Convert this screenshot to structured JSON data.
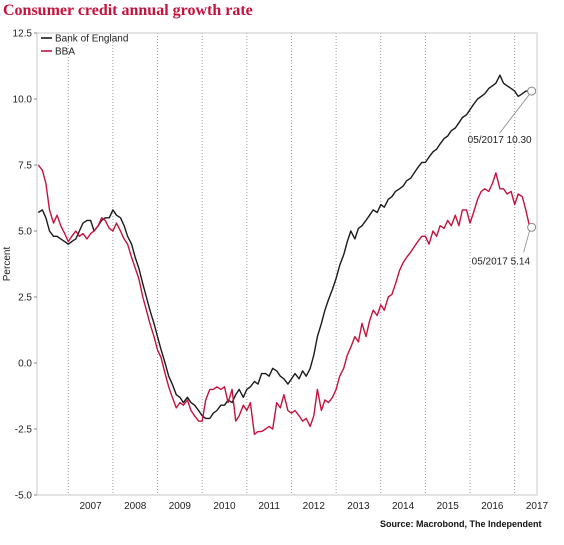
{
  "chart_data": {
    "type": "line",
    "title": "Consumer credit annual growth rate",
    "ylabel": "Percent",
    "xlabel": "",
    "ylim": [
      -5.0,
      12.5
    ],
    "yticks": [
      "12.5",
      "10.0",
      "7.5",
      "5.0",
      "2.5",
      "0.0",
      "-2.5",
      "-5.0"
    ],
    "xticks": [
      "2007",
      "2008",
      "2009",
      "2010",
      "2011",
      "2012",
      "2013",
      "2014",
      "2015",
      "2016",
      "2017"
    ],
    "xlim": [
      2006.3,
      2017.5
    ],
    "grid": "vertical-dotted",
    "legend": "top-left",
    "series": [
      {
        "name": "Bank of England",
        "color": "#1a1a1a",
        "points": [
          [
            2006.33,
            5.7
          ],
          [
            2006.42,
            5.8
          ],
          [
            2006.5,
            5.5
          ],
          [
            2006.58,
            5.0
          ],
          [
            2006.67,
            4.8
          ],
          [
            2006.75,
            4.8
          ],
          [
            2006.83,
            4.7
          ],
          [
            2006.92,
            4.6
          ],
          [
            2007.0,
            4.5
          ],
          [
            2007.08,
            4.6
          ],
          [
            2007.17,
            4.7
          ],
          [
            2007.25,
            5.0
          ],
          [
            2007.33,
            5.3
          ],
          [
            2007.42,
            5.4
          ],
          [
            2007.5,
            5.4
          ],
          [
            2007.58,
            5.0
          ],
          [
            2007.67,
            5.2
          ],
          [
            2007.75,
            5.4
          ],
          [
            2007.83,
            5.5
          ],
          [
            2007.92,
            5.5
          ],
          [
            2008.0,
            5.8
          ],
          [
            2008.08,
            5.6
          ],
          [
            2008.17,
            5.5
          ],
          [
            2008.25,
            5.2
          ],
          [
            2008.33,
            4.8
          ],
          [
            2008.42,
            4.5
          ],
          [
            2008.5,
            4.0
          ],
          [
            2008.58,
            3.6
          ],
          [
            2008.67,
            3.0
          ],
          [
            2008.75,
            2.5
          ],
          [
            2008.83,
            2.0
          ],
          [
            2008.92,
            1.5
          ],
          [
            2009.0,
            1.0
          ],
          [
            2009.08,
            0.5
          ],
          [
            2009.17,
            0.0
          ],
          [
            2009.25,
            -0.5
          ],
          [
            2009.33,
            -0.8
          ],
          [
            2009.42,
            -1.2
          ],
          [
            2009.5,
            -1.3
          ],
          [
            2009.58,
            -1.5
          ],
          [
            2009.67,
            -1.3
          ],
          [
            2009.75,
            -1.5
          ],
          [
            2009.83,
            -1.6
          ],
          [
            2009.92,
            -1.8
          ],
          [
            2010.0,
            -2.0
          ],
          [
            2010.08,
            -2.1
          ],
          [
            2010.17,
            -2.1
          ],
          [
            2010.25,
            -1.9
          ],
          [
            2010.33,
            -1.8
          ],
          [
            2010.42,
            -1.6
          ],
          [
            2010.5,
            -1.6
          ],
          [
            2010.58,
            -1.4
          ],
          [
            2010.67,
            -1.5
          ],
          [
            2010.75,
            -1.2
          ],
          [
            2010.83,
            -1.0
          ],
          [
            2010.92,
            -1.3
          ],
          [
            2011.0,
            -1.0
          ],
          [
            2011.08,
            -0.9
          ],
          [
            2011.17,
            -0.7
          ],
          [
            2011.25,
            -0.8
          ],
          [
            2011.33,
            -0.4
          ],
          [
            2011.42,
            -0.4
          ],
          [
            2011.5,
            -0.5
          ],
          [
            2011.58,
            -0.2
          ],
          [
            2011.67,
            -0.3
          ],
          [
            2011.75,
            -0.5
          ],
          [
            2011.83,
            -0.6
          ],
          [
            2011.92,
            -0.8
          ],
          [
            2012.0,
            -0.6
          ],
          [
            2012.08,
            -0.4
          ],
          [
            2012.17,
            -0.6
          ],
          [
            2012.25,
            -0.3
          ],
          [
            2012.33,
            -0.5
          ],
          [
            2012.42,
            -0.2
          ],
          [
            2012.5,
            0.3
          ],
          [
            2012.58,
            1.0
          ],
          [
            2012.67,
            1.5
          ],
          [
            2012.75,
            2.0
          ],
          [
            2012.83,
            2.4
          ],
          [
            2012.92,
            2.8
          ],
          [
            2013.0,
            3.2
          ],
          [
            2013.08,
            3.7
          ],
          [
            2013.17,
            4.1
          ],
          [
            2013.25,
            4.6
          ],
          [
            2013.33,
            5.0
          ],
          [
            2013.42,
            4.7
          ],
          [
            2013.5,
            5.1
          ],
          [
            2013.58,
            5.2
          ],
          [
            2013.67,
            5.4
          ],
          [
            2013.75,
            5.6
          ],
          [
            2013.83,
            5.8
          ],
          [
            2013.92,
            5.7
          ],
          [
            2014.0,
            6.0
          ],
          [
            2014.08,
            5.9
          ],
          [
            2014.17,
            6.2
          ],
          [
            2014.25,
            6.3
          ],
          [
            2014.33,
            6.5
          ],
          [
            2014.42,
            6.6
          ],
          [
            2014.5,
            6.7
          ],
          [
            2014.58,
            6.9
          ],
          [
            2014.67,
            7.0
          ],
          [
            2014.75,
            7.2
          ],
          [
            2014.83,
            7.4
          ],
          [
            2014.92,
            7.6
          ],
          [
            2015.0,
            7.6
          ],
          [
            2015.08,
            7.8
          ],
          [
            2015.17,
            8.0
          ],
          [
            2015.25,
            8.1
          ],
          [
            2015.33,
            8.3
          ],
          [
            2015.42,
            8.5
          ],
          [
            2015.5,
            8.6
          ],
          [
            2015.58,
            8.8
          ],
          [
            2015.67,
            8.9
          ],
          [
            2015.75,
            9.1
          ],
          [
            2015.83,
            9.3
          ],
          [
            2015.92,
            9.4
          ],
          [
            2016.0,
            9.6
          ],
          [
            2016.08,
            9.8
          ],
          [
            2016.17,
            10.0
          ],
          [
            2016.25,
            10.1
          ],
          [
            2016.33,
            10.2
          ],
          [
            2016.42,
            10.4
          ],
          [
            2016.5,
            10.5
          ],
          [
            2016.58,
            10.6
          ],
          [
            2016.67,
            10.9
          ],
          [
            2016.75,
            10.6
          ],
          [
            2016.83,
            10.5
          ],
          [
            2016.92,
            10.4
          ],
          [
            2017.0,
            10.3
          ],
          [
            2017.08,
            10.1
          ],
          [
            2017.17,
            10.2
          ],
          [
            2017.25,
            10.3
          ],
          [
            2017.33,
            10.3
          ],
          [
            2017.38,
            10.3
          ]
        ]
      },
      {
        "name": "BBA",
        "color": "#c4123e",
        "points": [
          [
            2006.33,
            7.5
          ],
          [
            2006.42,
            7.3
          ],
          [
            2006.5,
            6.8
          ],
          [
            2006.58,
            5.8
          ],
          [
            2006.67,
            5.3
          ],
          [
            2006.75,
            5.6
          ],
          [
            2006.83,
            5.2
          ],
          [
            2006.92,
            4.9
          ],
          [
            2007.0,
            4.6
          ],
          [
            2007.08,
            4.8
          ],
          [
            2007.17,
            5.0
          ],
          [
            2007.25,
            4.8
          ],
          [
            2007.33,
            4.9
          ],
          [
            2007.42,
            4.7
          ],
          [
            2007.5,
            4.9
          ],
          [
            2007.58,
            5.0
          ],
          [
            2007.67,
            5.2
          ],
          [
            2007.75,
            5.5
          ],
          [
            2007.83,
            5.4
          ],
          [
            2007.92,
            5.1
          ],
          [
            2008.0,
            5.0
          ],
          [
            2008.08,
            5.3
          ],
          [
            2008.17,
            5.0
          ],
          [
            2008.25,
            4.7
          ],
          [
            2008.33,
            4.5
          ],
          [
            2008.42,
            4.0
          ],
          [
            2008.5,
            3.6
          ],
          [
            2008.58,
            3.2
          ],
          [
            2008.67,
            2.5
          ],
          [
            2008.75,
            2.0
          ],
          [
            2008.83,
            1.5
          ],
          [
            2008.92,
            1.0
          ],
          [
            2009.0,
            0.5
          ],
          [
            2009.08,
            0.2
          ],
          [
            2009.17,
            -0.4
          ],
          [
            2009.25,
            -0.9
          ],
          [
            2009.33,
            -1.3
          ],
          [
            2009.42,
            -1.7
          ],
          [
            2009.5,
            -1.5
          ],
          [
            2009.58,
            -1.6
          ],
          [
            2009.67,
            -1.4
          ],
          [
            2009.75,
            -1.8
          ],
          [
            2009.83,
            -2.0
          ],
          [
            2009.92,
            -2.2
          ],
          [
            2010.0,
            -2.2
          ],
          [
            2010.08,
            -1.4
          ],
          [
            2010.17,
            -1.0
          ],
          [
            2010.25,
            -1.0
          ],
          [
            2010.33,
            -0.9
          ],
          [
            2010.42,
            -1.0
          ],
          [
            2010.5,
            -0.9
          ],
          [
            2010.58,
            -1.5
          ],
          [
            2010.67,
            -1.0
          ],
          [
            2010.75,
            -2.2
          ],
          [
            2010.83,
            -2.0
          ],
          [
            2010.92,
            -1.6
          ],
          [
            2011.0,
            -1.8
          ],
          [
            2011.08,
            -1.5
          ],
          [
            2011.17,
            -2.7
          ],
          [
            2011.25,
            -2.6
          ],
          [
            2011.33,
            -2.6
          ],
          [
            2011.42,
            -2.5
          ],
          [
            2011.5,
            -2.4
          ],
          [
            2011.58,
            -2.5
          ],
          [
            2011.67,
            -1.5
          ],
          [
            2011.75,
            -1.7
          ],
          [
            2011.83,
            -1.2
          ],
          [
            2011.92,
            -1.8
          ],
          [
            2012.0,
            -1.9
          ],
          [
            2012.08,
            -1.8
          ],
          [
            2012.17,
            -2.0
          ],
          [
            2012.25,
            -2.2
          ],
          [
            2012.33,
            -2.1
          ],
          [
            2012.42,
            -2.4
          ],
          [
            2012.5,
            -2.0
          ],
          [
            2012.58,
            -1.0
          ],
          [
            2012.67,
            -1.8
          ],
          [
            2012.75,
            -1.4
          ],
          [
            2012.83,
            -1.5
          ],
          [
            2012.92,
            -1.3
          ],
          [
            2013.0,
            -1.0
          ],
          [
            2013.08,
            -0.5
          ],
          [
            2013.17,
            -0.2
          ],
          [
            2013.25,
            0.3
          ],
          [
            2013.33,
            0.6
          ],
          [
            2013.42,
            1.0
          ],
          [
            2013.5,
            0.8
          ],
          [
            2013.58,
            1.5
          ],
          [
            2013.67,
            1.0
          ],
          [
            2013.75,
            1.6
          ],
          [
            2013.83,
            2.0
          ],
          [
            2013.92,
            1.8
          ],
          [
            2014.0,
            2.2
          ],
          [
            2014.08,
            2.0
          ],
          [
            2014.17,
            2.5
          ],
          [
            2014.25,
            2.6
          ],
          [
            2014.33,
            3.0
          ],
          [
            2014.42,
            3.5
          ],
          [
            2014.5,
            3.8
          ],
          [
            2014.58,
            4.0
          ],
          [
            2014.67,
            4.2
          ],
          [
            2014.75,
            4.4
          ],
          [
            2014.83,
            4.6
          ],
          [
            2014.92,
            4.8
          ],
          [
            2015.0,
            4.8
          ],
          [
            2015.08,
            4.5
          ],
          [
            2015.17,
            5.0
          ],
          [
            2015.25,
            4.8
          ],
          [
            2015.33,
            5.2
          ],
          [
            2015.42,
            5.1
          ],
          [
            2015.5,
            5.4
          ],
          [
            2015.58,
            5.2
          ],
          [
            2015.67,
            5.6
          ],
          [
            2015.75,
            5.2
          ],
          [
            2015.83,
            5.8
          ],
          [
            2015.92,
            5.8
          ],
          [
            2016.0,
            5.3
          ],
          [
            2016.08,
            5.7
          ],
          [
            2016.17,
            6.2
          ],
          [
            2016.25,
            6.5
          ],
          [
            2016.33,
            6.6
          ],
          [
            2016.42,
            6.5
          ],
          [
            2016.5,
            6.8
          ],
          [
            2016.58,
            7.2
          ],
          [
            2016.67,
            6.6
          ],
          [
            2016.75,
            6.6
          ],
          [
            2016.83,
            6.4
          ],
          [
            2016.92,
            6.5
          ],
          [
            2017.0,
            6.0
          ],
          [
            2017.08,
            6.4
          ],
          [
            2017.17,
            6.3
          ],
          [
            2017.25,
            5.8
          ],
          [
            2017.33,
            5.2
          ],
          [
            2017.38,
            5.14
          ]
        ]
      }
    ],
    "annotations": [
      {
        "text": "05/2017 10.30",
        "x": 2017.38,
        "y": 10.3,
        "series": "Bank of England"
      },
      {
        "text": "05/2017 5.14",
        "x": 2017.38,
        "y": 5.14,
        "series": "BBA"
      }
    ]
  },
  "footer": {
    "source": "Source: Macrobond, The Independent"
  }
}
